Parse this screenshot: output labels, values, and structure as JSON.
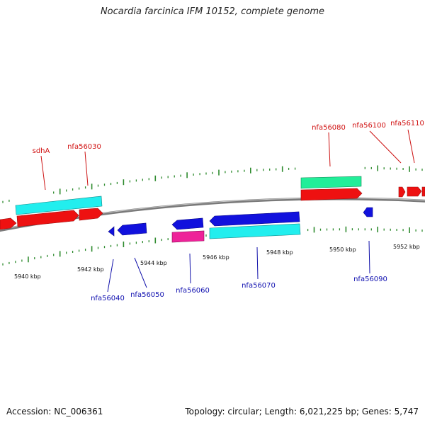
{
  "title": "Nocardia farcinica IFM 10152, complete genome",
  "footer": {
    "accession": "Accession: NC_006361",
    "stats": "Topology: circular; Length: 6,021,225 bp; Genes: 5,747"
  },
  "colors": {
    "backbone": "#808080",
    "tick": "#2e8b2e",
    "forward_label": "#d01010",
    "reverse_label": "#1010b0",
    "cds_red": "#ee1111",
    "cds_blue": "#1111dd",
    "gene_cyan": "#22eeee",
    "gene_green": "#22ee99",
    "gene_magenta": "#ee2299"
  },
  "kbp_labels": [
    "5940 kbp",
    "5942 kbp",
    "5944 kbp",
    "5946 kbp",
    "5948 kbp",
    "5950 kbp",
    "5952 kbp"
  ],
  "forward_genes": [
    "sdhA",
    "nfa56030",
    "nfa56080",
    "nfa56100",
    "nfa56110"
  ],
  "reverse_genes": [
    "nfa56040",
    "nfa56050",
    "nfa56060",
    "nfa56070",
    "nfa56090"
  ]
}
